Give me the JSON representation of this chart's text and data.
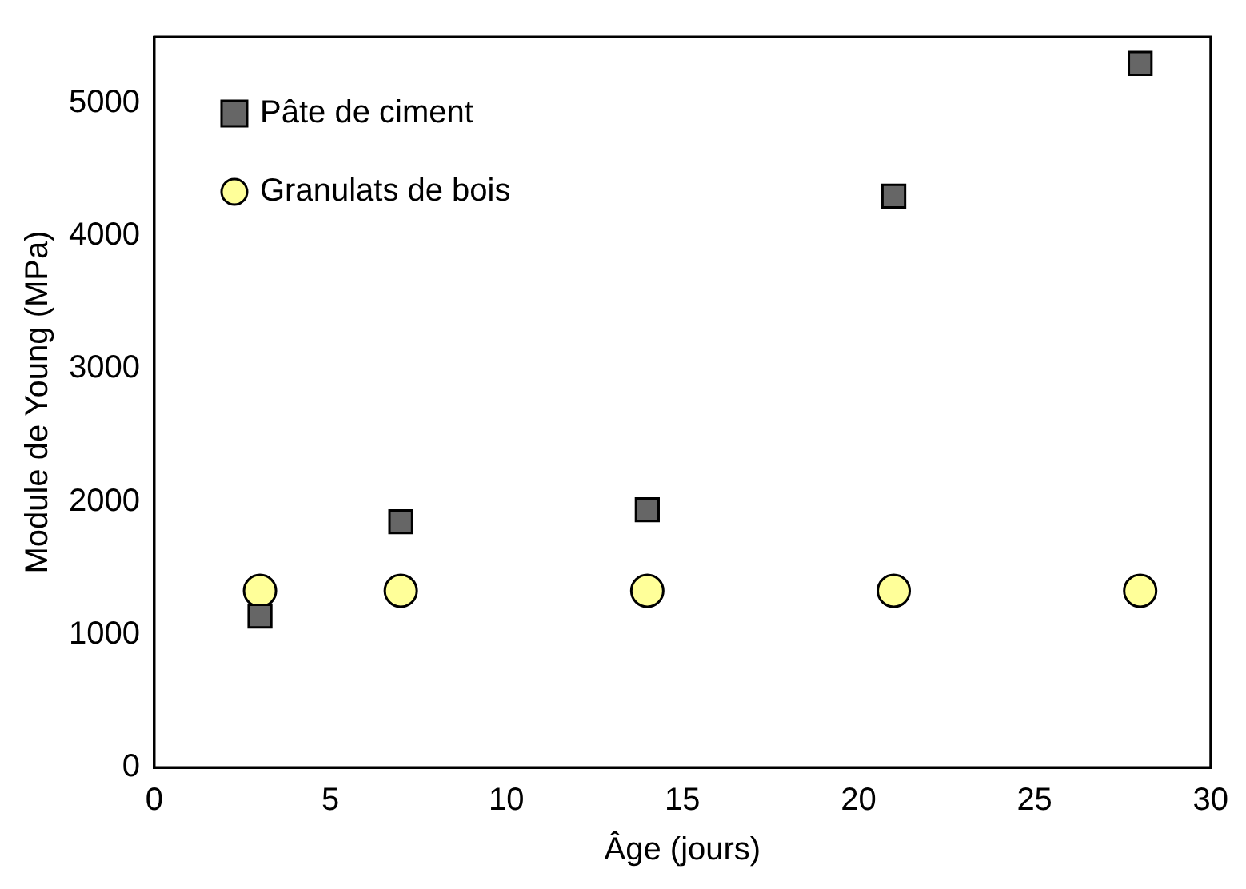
{
  "chart_data": {
    "type": "scatter",
    "xlabel": "Âge (jours)",
    "ylabel": "Module de Young (MPa)",
    "xlim": [
      0,
      30
    ],
    "xticks": [
      0,
      5,
      10,
      15,
      20,
      25,
      30
    ],
    "ylim": [
      0,
      5500
    ],
    "yticks": [
      0,
      1000,
      2000,
      3000,
      4000,
      5000
    ],
    "grid": false,
    "legend": "top left",
    "series": [
      {
        "name": "Pâte de ciment",
        "color": "#666666",
        "marker": "square",
        "x": [
          3,
          7,
          14,
          21,
          28
        ],
        "values": [
          1140,
          1850,
          1940,
          4300,
          5300
        ]
      },
      {
        "name": "Granulats de bois",
        "color": "#ffff99",
        "marker": "circle",
        "x": [
          3,
          7,
          14,
          21,
          28
        ],
        "values": [
          1330,
          1330,
          1330,
          1330,
          1330
        ]
      }
    ]
  }
}
